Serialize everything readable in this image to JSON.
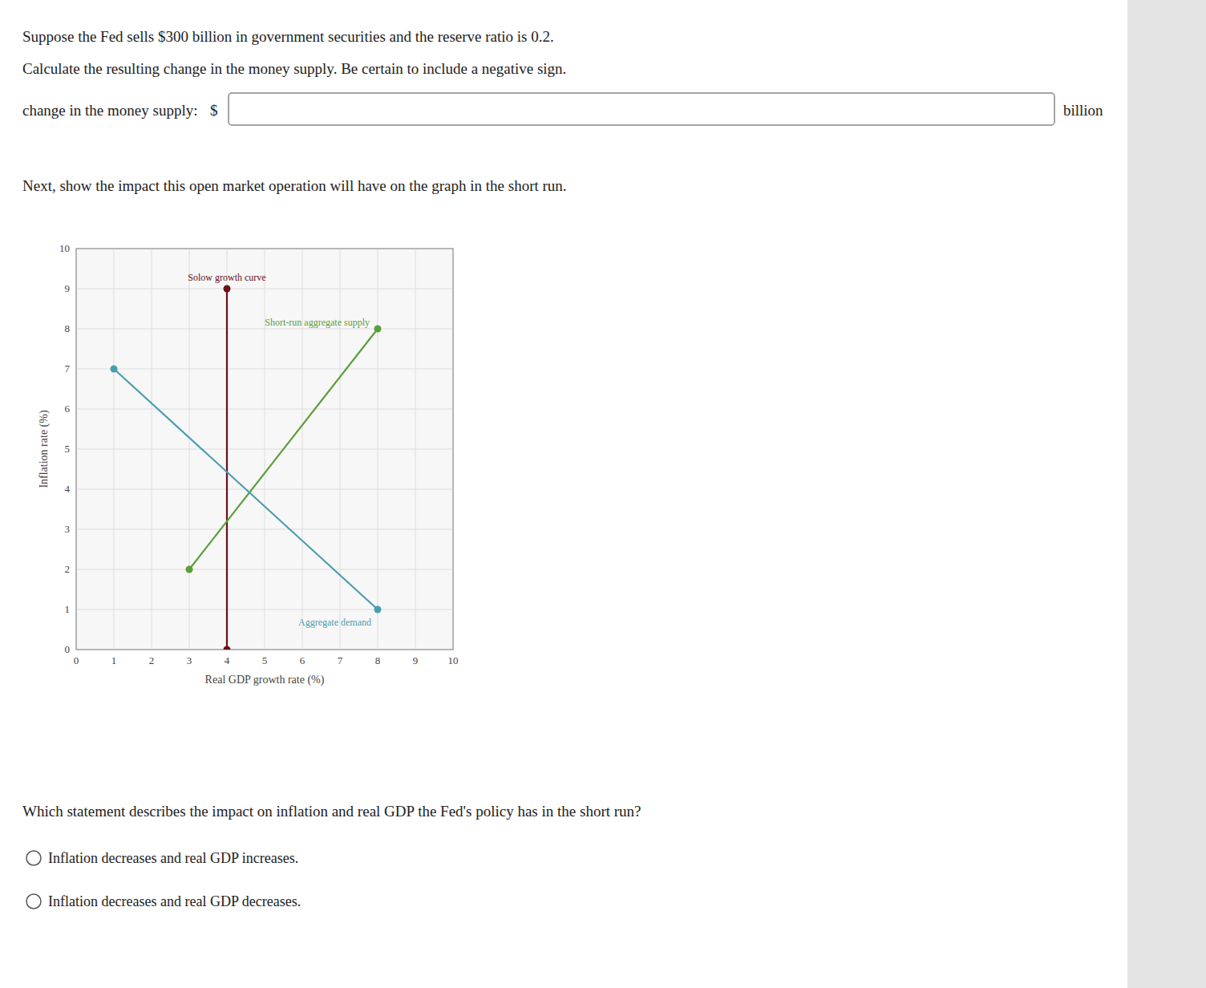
{
  "page": {
    "title": [
      "Suppose the Fed sells $300 billion in government securities and the reserve ratio is 0.2.",
      "Calculate the resulting change in the money supply. Be certain to include a negative sign."
    ],
    "input_label": "change in the money supply:",
    "currency": "$",
    "unit": "billion",
    "instruction": "Next, show the impact this open market operation will have on the graph in the short run.",
    "question": "Which statement describes the impact on inflation and real GDP the Fed's policy has in the short run?",
    "options": [
      "Inflation decreases and real GDP increases.",
      "Inflation decreases and real GDP decreases."
    ]
  },
  "chart_data": {
    "type": "line",
    "xlabel": "Real GDP growth rate (%)",
    "ylabel": "Inflation rate (%)",
    "xlim": [
      0,
      10
    ],
    "ylim": [
      0,
      10
    ],
    "xticks": [
      0,
      1,
      2,
      3,
      4,
      5,
      6,
      7,
      8,
      9,
      10
    ],
    "yticks": [
      0,
      1,
      2,
      3,
      4,
      5,
      6,
      7,
      8,
      9,
      10
    ],
    "grid": true,
    "series": [
      {
        "name": "Solow growth curve",
        "color": "#6b0f1a",
        "x": [
          4,
          4
        ],
        "values": [
          0,
          9
        ],
        "marker": "circle"
      },
      {
        "name": "Short-run aggregate supply",
        "color": "#5a9e3a",
        "x": [
          3,
          8
        ],
        "values": [
          2,
          8
        ],
        "marker": "circle"
      },
      {
        "name": "Aggregate demand",
        "color": "#4a9db0",
        "x": [
          1,
          8
        ],
        "values": [
          7,
          1
        ],
        "marker": "circle"
      }
    ]
  }
}
